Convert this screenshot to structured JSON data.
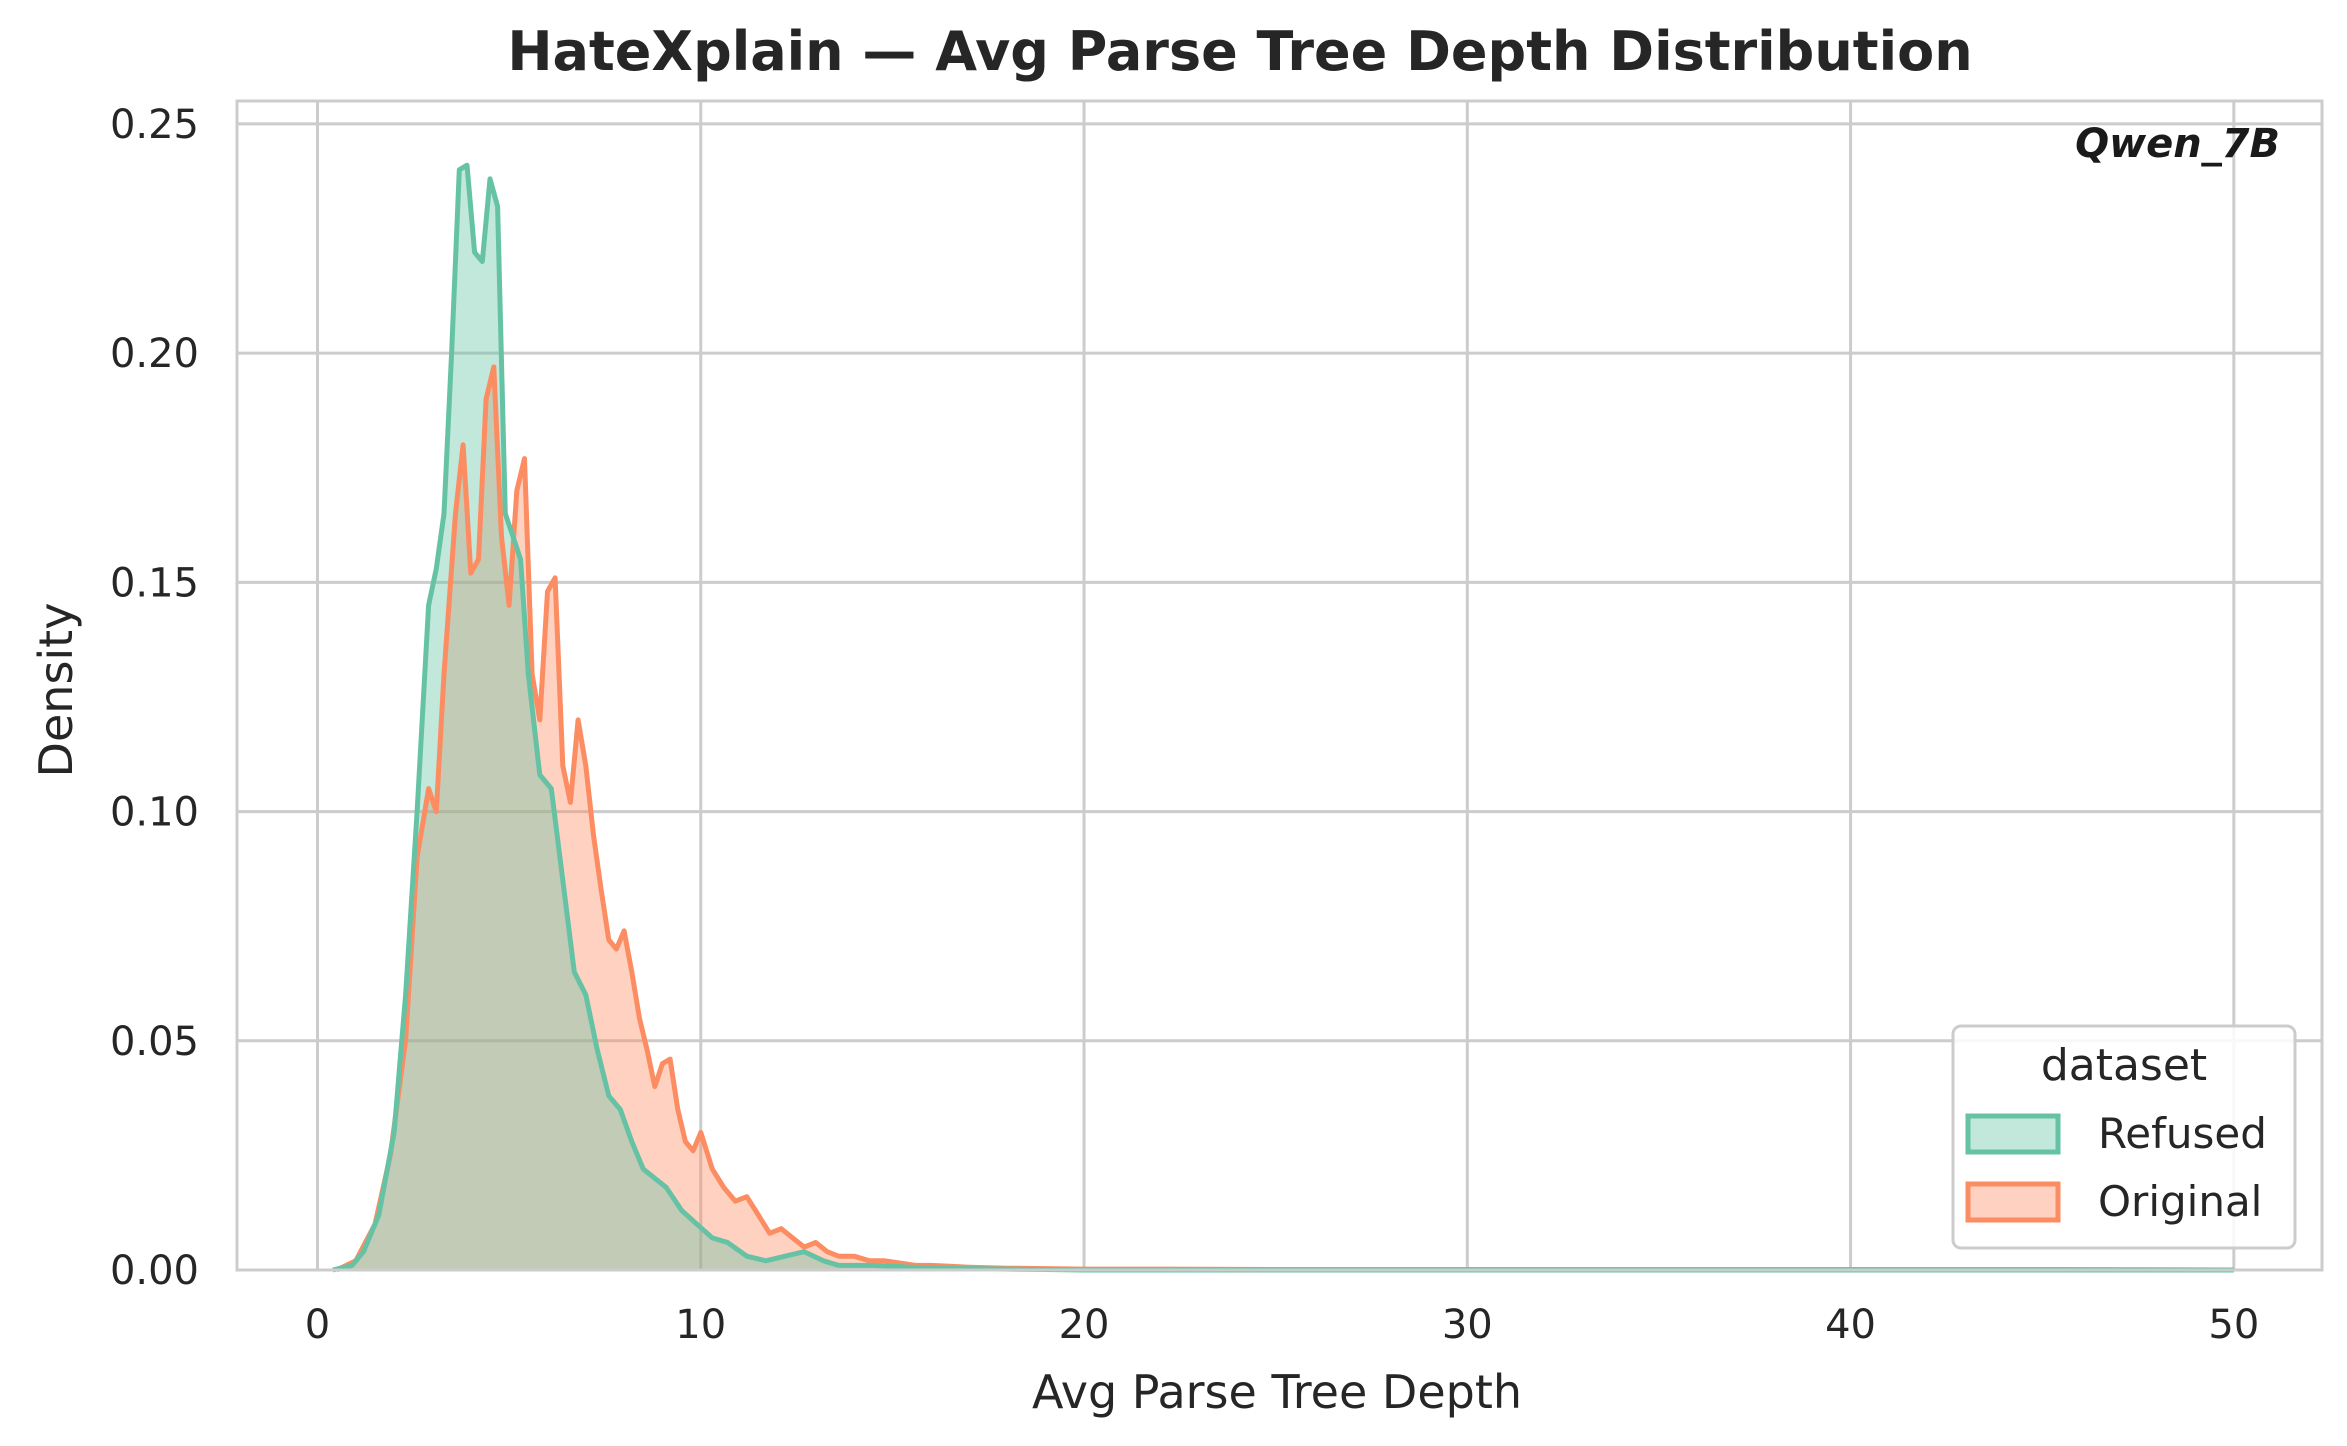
{
  "chart_data": {
    "type": "area",
    "title": "HateXplain — Avg Parse Tree Depth Distribution",
    "xlabel": "Avg Parse Tree Depth",
    "ylabel": "Density",
    "annotation": "Qwen_7B",
    "xlim": [
      -2.1,
      52.3
    ],
    "ylim": [
      0,
      0.255
    ],
    "xticks": [
      0,
      10,
      20,
      30,
      40,
      50
    ],
    "xtick_labels": [
      "0",
      "10",
      "20",
      "30",
      "40",
      "50"
    ],
    "yticks": [
      0,
      0.05,
      0.1,
      0.15,
      0.2,
      0.25
    ],
    "ytick_labels": [
      "0.00",
      "0.05",
      "0.10",
      "0.15",
      "0.20",
      "0.25"
    ],
    "grid": true,
    "legend": {
      "title": "dataset",
      "placement": "lower-right",
      "entries": [
        "Refused",
        "Original"
      ]
    },
    "series": [
      {
        "name": "Refused",
        "color": "#66c2a5",
        "x": [
          0.4,
          0.9,
          1.2,
          1.6,
          2.0,
          2.3,
          2.6,
          2.9,
          3.1,
          3.3,
          3.5,
          3.7,
          3.9,
          4.1,
          4.3,
          4.5,
          4.7,
          4.9,
          5.1,
          5.3,
          5.5,
          5.8,
          6.1,
          6.4,
          6.7,
          7.0,
          7.3,
          7.6,
          7.9,
          8.2,
          8.5,
          8.8,
          9.1,
          9.5,
          9.9,
          10.3,
          10.7,
          11.2,
          11.7,
          12.2,
          12.7,
          13.2,
          13.6,
          14.0,
          14.5,
          15.0,
          15.5,
          16.0,
          17.0,
          18.0,
          19.0,
          20.0,
          22.0,
          25.0,
          30.0,
          35.0,
          40.0,
          45.0,
          50.0
        ],
        "values": [
          0,
          0.001,
          0.004,
          0.012,
          0.03,
          0.06,
          0.1,
          0.145,
          0.153,
          0.165,
          0.2,
          0.24,
          0.241,
          0.222,
          0.22,
          0.238,
          0.232,
          0.165,
          0.16,
          0.155,
          0.13,
          0.108,
          0.105,
          0.085,
          0.065,
          0.06,
          0.048,
          0.038,
          0.035,
          0.028,
          0.022,
          0.02,
          0.018,
          0.013,
          0.01,
          0.007,
          0.006,
          0.003,
          0.002,
          0.003,
          0.004,
          0.002,
          0.001,
          0.001,
          0.001,
          0.0008,
          0.0006,
          0.0005,
          0.0003,
          0.0002,
          0.0001,
          0,
          0,
          0,
          0,
          0,
          0,
          0,
          0
        ]
      },
      {
        "name": "Original",
        "color": "#fc8d62",
        "x": [
          0.5,
          1.0,
          1.5,
          1.9,
          2.3,
          2.6,
          2.9,
          3.1,
          3.3,
          3.6,
          3.8,
          4.0,
          4.2,
          4.4,
          4.6,
          4.8,
          5.0,
          5.2,
          5.4,
          5.6,
          5.8,
          6.0,
          6.2,
          6.4,
          6.6,
          6.8,
          7.0,
          7.2,
          7.4,
          7.6,
          7.8,
          8.0,
          8.2,
          8.4,
          8.6,
          8.8,
          9.0,
          9.2,
          9.4,
          9.6,
          9.8,
          10.0,
          10.3,
          10.6,
          10.9,
          11.2,
          11.5,
          11.8,
          12.1,
          12.4,
          12.7,
          13.0,
          13.3,
          13.6,
          14.0,
          14.4,
          14.8,
          15.2,
          15.6,
          16.0,
          16.5,
          17.0,
          17.5,
          18.0,
          19.0,
          20.0,
          22.0,
          25.0,
          30.0,
          35.0,
          40.0,
          45.0,
          50.0
        ],
        "values": [
          0,
          0.002,
          0.01,
          0.025,
          0.05,
          0.09,
          0.105,
          0.1,
          0.13,
          0.165,
          0.18,
          0.152,
          0.155,
          0.19,
          0.197,
          0.16,
          0.145,
          0.17,
          0.177,
          0.13,
          0.12,
          0.148,
          0.151,
          0.11,
          0.102,
          0.12,
          0.11,
          0.095,
          0.083,
          0.072,
          0.07,
          0.074,
          0.065,
          0.055,
          0.048,
          0.04,
          0.045,
          0.046,
          0.035,
          0.028,
          0.026,
          0.03,
          0.022,
          0.018,
          0.015,
          0.016,
          0.012,
          0.008,
          0.009,
          0.007,
          0.005,
          0.006,
          0.004,
          0.003,
          0.003,
          0.002,
          0.002,
          0.0015,
          0.001,
          0.001,
          0.0008,
          0.0006,
          0.0005,
          0.0004,
          0.0003,
          0.0002,
          0.0002,
          0.0001,
          0.0001,
          0.0001,
          0.0001,
          0.0001,
          0
        ]
      }
    ]
  }
}
